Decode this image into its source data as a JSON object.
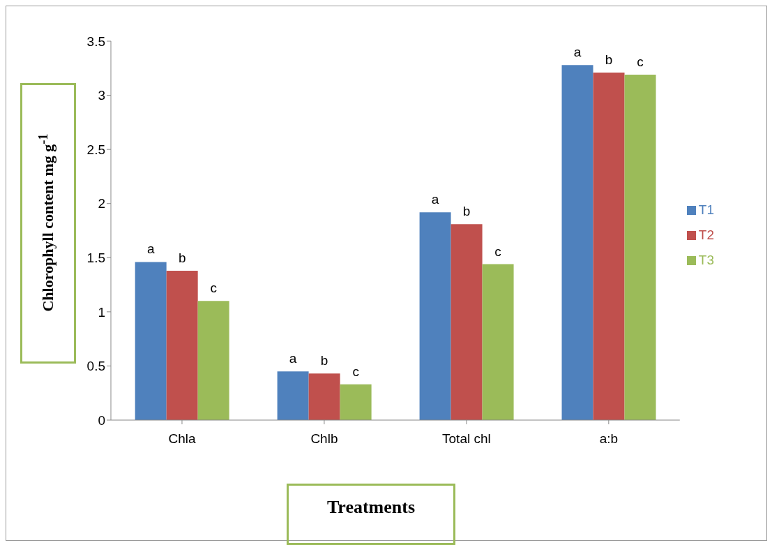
{
  "chart_data": {
    "type": "bar",
    "xlabel": "Treatments",
    "ylabel": "Chlorophyll content mg g$^{-1}$",
    "categories": [
      "Chla",
      "Chlb",
      "Total chl",
      "a:b"
    ],
    "series": [
      {
        "name": "T1",
        "color": "#4f81bd",
        "values": [
          1.46,
          0.45,
          1.92,
          3.28
        ],
        "value_labels": [
          "a",
          "a",
          "a",
          "a"
        ]
      },
      {
        "name": "T2",
        "color": "#c0504d",
        "values": [
          1.38,
          0.43,
          1.81,
          3.21
        ],
        "value_labels": [
          "b",
          "b",
          "b",
          "b"
        ]
      },
      {
        "name": "T3",
        "color": "#9bbb59",
        "values": [
          1.1,
          0.33,
          1.44,
          3.19
        ],
        "value_labels": [
          "c",
          "c",
          "c",
          "c"
        ]
      }
    ],
    "ylim": [
      0,
      3.5
    ],
    "yticks": [
      0,
      0.5,
      1,
      1.5,
      2,
      2.5,
      3,
      3.5
    ],
    "grid": false,
    "legend": "right"
  }
}
